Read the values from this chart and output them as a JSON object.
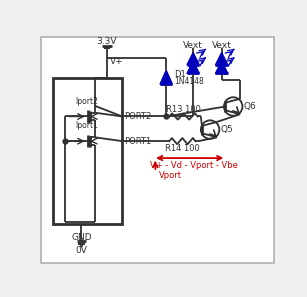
{
  "bg_color": "#f0f0f0",
  "border_color": "#b0b0b0",
  "line_color": "#303030",
  "blue_color": "#0000bb",
  "red_color": "#cc0000",
  "vcc_label": "3.3V",
  "vplus_label": "V+",
  "gnd_label": "GND",
  "gvolt_label": "0V",
  "port1_label": "PORT1",
  "port2_label": "PORT2",
  "iport1_label": "Iport1",
  "iport2_label": "Iport2",
  "d1_label": "D1",
  "d1_type": "1N4148",
  "r13_label": "R13 100",
  "r14_label": "R14 100",
  "q5_label": "Q5",
  "q6_label": "Q6",
  "vext_label1": "Vext",
  "vext_label2": "Vext",
  "formula1": "V+ - Vd - Vport - Vbe",
  "formula2": "Vport"
}
